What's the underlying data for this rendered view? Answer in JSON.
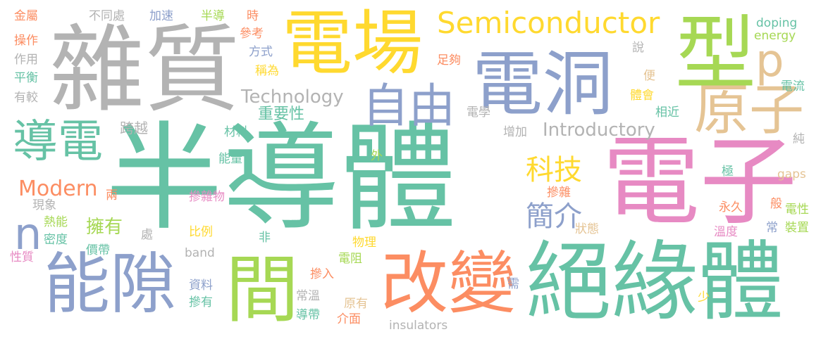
{
  "palette": {
    "green": "#66c2a5",
    "orange": "#fc8d62",
    "blue": "#8da0cb",
    "pink": "#e78ac3",
    "lime": "#a6d854",
    "yellow": "#ffd92f",
    "tan": "#e5c494",
    "gray": "#b3b3b3"
  },
  "words": [
    {
      "text": "半導體",
      "color": "green"
    },
    {
      "text": "電子",
      "color": "pink"
    },
    {
      "text": "絕緣體",
      "color": "green"
    },
    {
      "text": "雜質",
      "color": "gray"
    },
    {
      "text": "電場",
      "color": "yellow"
    },
    {
      "text": "電洞",
      "color": "blue"
    },
    {
      "text": "型",
      "color": "lime"
    },
    {
      "text": "能隙",
      "color": "blue"
    },
    {
      "text": "改變",
      "color": "orange"
    },
    {
      "text": "間",
      "color": "lime"
    },
    {
      "text": "自由",
      "color": "blue"
    },
    {
      "text": "原子",
      "color": "tan"
    },
    {
      "text": "導電",
      "color": "green"
    },
    {
      "text": "Semiconductor",
      "color": "yellow"
    },
    {
      "text": "p",
      "color": "tan"
    },
    {
      "text": "n",
      "color": "blue"
    },
    {
      "text": "Introductory",
      "color": "gray"
    },
    {
      "text": "Technology",
      "color": "gray"
    },
    {
      "text": "Modern",
      "color": "orange"
    },
    {
      "text": "科技",
      "color": "yellow"
    },
    {
      "text": "簡介",
      "color": "blue"
    },
    {
      "text": "擁有",
      "color": "lime"
    },
    {
      "text": "跨越",
      "color": "gray"
    },
    {
      "text": "重要性",
      "color": "green"
    },
    {
      "text": "材料",
      "color": "green"
    },
    {
      "text": "能量",
      "color": "green"
    },
    {
      "text": "摻雜物",
      "color": "pink"
    },
    {
      "text": "金屬",
      "color": "orange"
    },
    {
      "text": "不同處",
      "color": "gray"
    },
    {
      "text": "加速",
      "color": "blue"
    },
    {
      "text": "半導",
      "color": "lime"
    },
    {
      "text": "時",
      "color": "orange"
    },
    {
      "text": "參考",
      "color": "orange"
    },
    {
      "text": "方式",
      "color": "blue"
    },
    {
      "text": "稱為",
      "color": "yellow"
    },
    {
      "text": "足夠",
      "color": "orange"
    },
    {
      "text": "說",
      "color": "gray"
    },
    {
      "text": "doping",
      "color": "green"
    },
    {
      "text": "energy",
      "color": "lime"
    },
    {
      "text": "操作",
      "color": "orange"
    },
    {
      "text": "作用",
      "color": "gray"
    },
    {
      "text": "平衡",
      "color": "green"
    },
    {
      "text": "有較",
      "color": "gray"
    },
    {
      "text": "電學",
      "color": "gray"
    },
    {
      "text": "增加",
      "color": "gray"
    },
    {
      "text": "相近",
      "color": "green"
    },
    {
      "text": "電流",
      "color": "green"
    },
    {
      "text": "純",
      "color": "gray"
    },
    {
      "text": "外",
      "color": "lime"
    },
    {
      "text": "兩",
      "color": "orange"
    },
    {
      "text": "現象",
      "color": "gray"
    },
    {
      "text": "熱能",
      "color": "lime"
    },
    {
      "text": "密度",
      "color": "green"
    },
    {
      "text": "價帶",
      "color": "green"
    },
    {
      "text": "性質",
      "color": "pink"
    },
    {
      "text": "處",
      "color": "gray"
    },
    {
      "text": "比例",
      "color": "yellow"
    },
    {
      "text": "非",
      "color": "green"
    },
    {
      "text": "band",
      "color": "gray"
    },
    {
      "text": "物理",
      "color": "yellow"
    },
    {
      "text": "電阻",
      "color": "lime"
    },
    {
      "text": "摻入",
      "color": "orange"
    },
    {
      "text": "資料",
      "color": "blue"
    },
    {
      "text": "摻有",
      "color": "green"
    },
    {
      "text": "常溫",
      "color": "gray"
    },
    {
      "text": "導帶",
      "color": "green"
    },
    {
      "text": "原有",
      "color": "tan"
    },
    {
      "text": "介面",
      "color": "orange"
    },
    {
      "text": "insulators",
      "color": "gray"
    },
    {
      "text": "需",
      "color": "blue"
    },
    {
      "text": "摻雜",
      "color": "orange"
    },
    {
      "text": "永久",
      "color": "orange"
    },
    {
      "text": "狀態",
      "color": "tan"
    },
    {
      "text": "溫度",
      "color": "pink"
    },
    {
      "text": "電性",
      "color": "lime"
    },
    {
      "text": "常",
      "color": "blue"
    },
    {
      "text": "裝置",
      "color": "lime"
    },
    {
      "text": "少",
      "color": "yellow"
    },
    {
      "text": "般",
      "color": "orange"
    },
    {
      "text": "極",
      "color": "green"
    },
    {
      "text": "gaps",
      "color": "tan"
    },
    {
      "text": "便",
      "color": "tan"
    },
    {
      "text": "體會",
      "color": "yellow"
    }
  ]
}
